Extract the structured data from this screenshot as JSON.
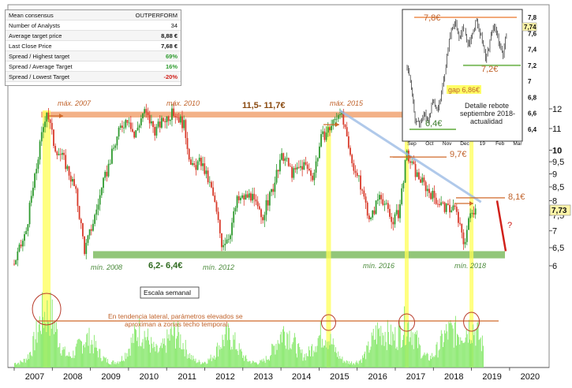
{
  "consensus": {
    "rows": [
      {
        "label": "Mean consensus",
        "value": "OUTPERFORM",
        "tone": "plain"
      },
      {
        "label": "Number of Analysts",
        "value": "34",
        "tone": "plain"
      },
      {
        "label": "Average target price",
        "value": "8,88 €",
        "tone": "bold"
      },
      {
        "label": "Last Close Price",
        "value": "7,68 €",
        "tone": "bold"
      },
      {
        "label": "Spread / Highest target",
        "value": "69%",
        "tone": "pos"
      },
      {
        "label": "Spread / Average Target",
        "value": "16%",
        "tone": "pos"
      },
      {
        "label": "Spread / Lowest Target",
        "value": "-20%",
        "tone": "neg"
      }
    ]
  },
  "chart_data": [
    {
      "type": "line",
      "x_ticks": [
        "2007",
        "2008",
        "2009",
        "2010",
        "2011",
        "2012",
        "2013",
        "2014",
        "2015",
        "2016",
        "2017",
        "2018",
        "2019",
        "2020"
      ],
      "y_ticks": [
        "12",
        "11",
        "10",
        "9,5",
        "9",
        "8,5",
        "8",
        "7,5",
        "7",
        "6,5",
        "6"
      ],
      "y_log": true,
      "ylim": [
        5.6,
        13.0
      ],
      "last_price_label": "7,73",
      "colors": {
        "up": "#2f9a2f",
        "down": "#d83a2a",
        "resistance": "#f2a97a",
        "support": "#86c06a",
        "highlight": "#ffff55",
        "annotation": "#d06a2a",
        "volume": "#86e86a",
        "trend": "#9dbce6"
      },
      "series": [
        {
          "values": [
            {
              "x": 2007.0,
              "y": 6.05
            },
            {
              "x": 2007.3,
              "y": 6.9
            },
            {
              "x": 2007.55,
              "y": 8.9
            },
            {
              "x": 2007.85,
              "y": 12.0
            },
            {
              "x": 2008.05,
              "y": 10.2
            },
            {
              "x": 2008.3,
              "y": 9.6
            },
            {
              "x": 2008.6,
              "y": 8.4
            },
            {
              "x": 2008.85,
              "y": 6.4
            },
            {
              "x": 2009.1,
              "y": 7.4
            },
            {
              "x": 2009.45,
              "y": 9.2
            },
            {
              "x": 2009.8,
              "y": 11.1
            },
            {
              "x": 2010.0,
              "y": 11.6
            },
            {
              "x": 2010.15,
              "y": 10.6
            },
            {
              "x": 2010.4,
              "y": 11.9
            },
            {
              "x": 2010.7,
              "y": 10.9
            },
            {
              "x": 2010.95,
              "y": 11.5
            },
            {
              "x": 2011.2,
              "y": 11.8
            },
            {
              "x": 2011.45,
              "y": 11.2
            },
            {
              "x": 2011.65,
              "y": 9.2
            },
            {
              "x": 2011.9,
              "y": 9.5
            },
            {
              "x": 2012.2,
              "y": 8.3
            },
            {
              "x": 2012.45,
              "y": 6.6
            },
            {
              "x": 2012.65,
              "y": 6.9
            },
            {
              "x": 2012.85,
              "y": 8.0
            },
            {
              "x": 2013.2,
              "y": 8.2
            },
            {
              "x": 2013.5,
              "y": 7.4
            },
            {
              "x": 2013.8,
              "y": 8.5
            },
            {
              "x": 2014.05,
              "y": 9.8
            },
            {
              "x": 2014.3,
              "y": 9.0
            },
            {
              "x": 2014.6,
              "y": 9.4
            },
            {
              "x": 2014.85,
              "y": 8.9
            },
            {
              "x": 2015.05,
              "y": 10.5
            },
            {
              "x": 2015.35,
              "y": 11.2
            },
            {
              "x": 2015.55,
              "y": 12.0
            },
            {
              "x": 2015.8,
              "y": 9.8
            },
            {
              "x": 2016.05,
              "y": 8.7
            },
            {
              "x": 2016.35,
              "y": 7.3
            },
            {
              "x": 2016.6,
              "y": 8.3
            },
            {
              "x": 2016.9,
              "y": 7.3
            },
            {
              "x": 2017.1,
              "y": 7.6
            },
            {
              "x": 2017.3,
              "y": 9.8
            },
            {
              "x": 2017.55,
              "y": 9.0
            },
            {
              "x": 2017.85,
              "y": 8.4
            },
            {
              "x": 2018.1,
              "y": 8.0
            },
            {
              "x": 2018.35,
              "y": 7.7
            },
            {
              "x": 2018.55,
              "y": 7.8
            },
            {
              "x": 2018.8,
              "y": 6.6
            },
            {
              "x": 2019.0,
              "y": 7.7
            },
            {
              "x": 2019.15,
              "y": 7.73
            }
          ]
        }
      ],
      "annotations": [
        {
          "label": "máx. 2007",
          "style": "italic"
        },
        {
          "label": "máx. 2010",
          "style": "italic"
        },
        {
          "label": "11,5- 11,7€",
          "style": "bold"
        },
        {
          "label": "máx. 2015",
          "style": "italic"
        },
        {
          "label": "9,7€",
          "style": "plain"
        },
        {
          "label": "8,1€",
          "style": "plain"
        },
        {
          "label": "?",
          "style": "plain"
        },
        {
          "label": "mín. 2008",
          "style": "italic"
        },
        {
          "label": "6,2- 6,4€",
          "style": "bold"
        },
        {
          "label": "mín. 2012",
          "style": "italic"
        },
        {
          "label": "mín. 2016",
          "style": "italic"
        },
        {
          "label": "mín. 2018",
          "style": "italic"
        },
        {
          "label": "Escala semanal",
          "style": "boxed"
        },
        {
          "label": "En tendencia lateral, parámetros elevados se",
          "style": "plain"
        },
        {
          "label": "aproximan a zonas techo temporal.",
          "style": "plain"
        }
      ],
      "volume_peaks": [
        {
          "x": 2007.85,
          "level": 1.0
        },
        {
          "x": 2008.9,
          "level": 0.45
        },
        {
          "x": 2010.3,
          "level": 0.6
        },
        {
          "x": 2011.2,
          "level": 0.55
        },
        {
          "x": 2012.6,
          "level": 0.5
        },
        {
          "x": 2014.1,
          "level": 0.6
        },
        {
          "x": 2015.1,
          "level": 0.55
        },
        {
          "x": 2016.6,
          "level": 0.6
        },
        {
          "x": 2017.3,
          "level": 0.7
        },
        {
          "x": 2018.4,
          "level": 0.55
        },
        {
          "x": 2019.0,
          "level": 0.65
        }
      ]
    },
    {
      "type": "line",
      "x_ticks": [
        "Sep",
        "Oct",
        "Nov",
        "Dec",
        "19",
        "Feb",
        "Mar"
      ],
      "y_ticks": [
        "7,8",
        "7,6",
        "7,4",
        "7,2",
        "7",
        "6,8",
        "6,6",
        "6,4"
      ],
      "ylim": [
        6.35,
        7.9
      ],
      "last_price_label": "7,74",
      "series": [
        {
          "values": [
            {
              "x": 0.0,
              "y": 7.2
            },
            {
              "x": 0.25,
              "y": 6.9
            },
            {
              "x": 0.45,
              "y": 6.55
            },
            {
              "x": 0.7,
              "y": 6.45
            },
            {
              "x": 0.95,
              "y": 6.6
            },
            {
              "x": 1.2,
              "y": 6.5
            },
            {
              "x": 1.45,
              "y": 6.75
            },
            {
              "x": 1.7,
              "y": 6.6
            },
            {
              "x": 1.95,
              "y": 6.85
            },
            {
              "x": 2.2,
              "y": 7.2
            },
            {
              "x": 2.45,
              "y": 7.6
            },
            {
              "x": 2.7,
              "y": 7.75
            },
            {
              "x": 2.95,
              "y": 7.55
            },
            {
              "x": 3.2,
              "y": 7.7
            },
            {
              "x": 3.45,
              "y": 7.45
            },
            {
              "x": 3.7,
              "y": 7.6
            },
            {
              "x": 3.95,
              "y": 7.75
            },
            {
              "x": 4.2,
              "y": 7.55
            },
            {
              "x": 4.45,
              "y": 7.3
            },
            {
              "x": 4.7,
              "y": 7.5
            },
            {
              "x": 4.95,
              "y": 7.7
            },
            {
              "x": 5.2,
              "y": 7.5
            },
            {
              "x": 5.45,
              "y": 7.3
            },
            {
              "x": 5.7,
              "y": 7.74
            }
          ]
        }
      ],
      "annotations": [
        {
          "label": "7,8€",
          "style": "plain"
        },
        {
          "label": "7,2€",
          "style": "plain"
        },
        {
          "label": "gap 6,86€",
          "style": "plain"
        },
        {
          "label": "6,4€",
          "style": "plain"
        },
        {
          "label": "Detalle rebote",
          "style": "plain"
        },
        {
          "label": "septiembre 2018-",
          "style": "plain"
        },
        {
          "label": "actualidad",
          "style": "plain"
        }
      ]
    }
  ]
}
